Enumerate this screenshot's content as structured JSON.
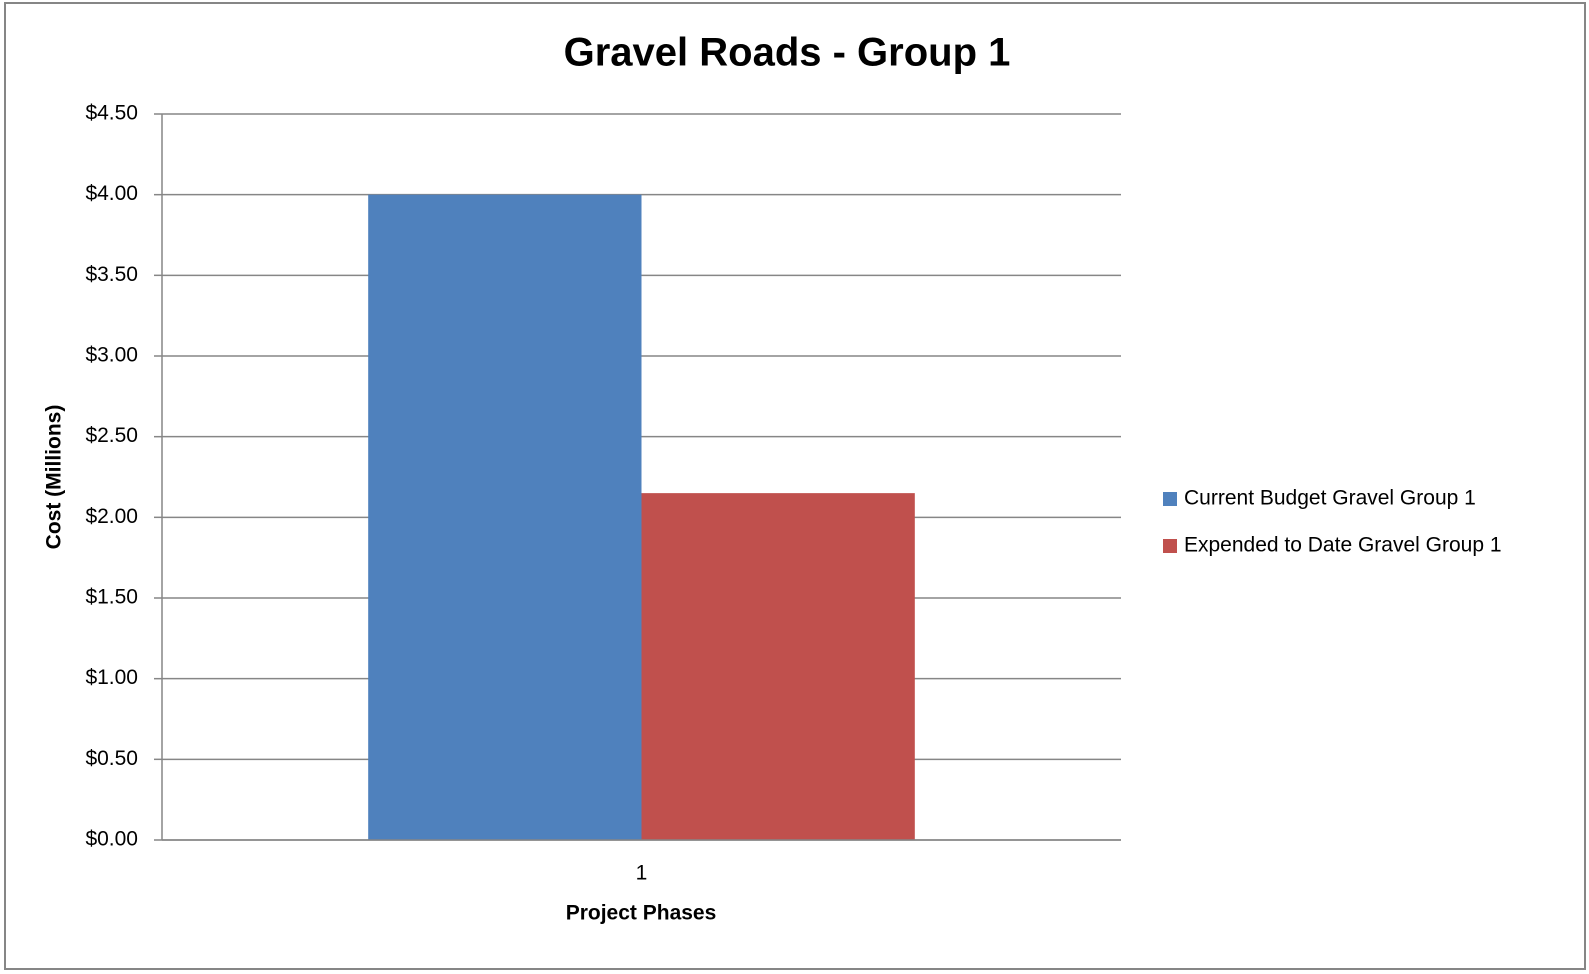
{
  "chart_data": {
    "type": "bar",
    "title": "Gravel Roads - Group 1",
    "x_label": "Project Phases",
    "y_label": "Cost (Millions)",
    "categories": [
      "1"
    ],
    "series": [
      {
        "name": "Current Budget Gravel Group 1",
        "color": "#4f81bd",
        "values": [
          4.0
        ]
      },
      {
        "name": "Expended to Date Gravel Group 1",
        "color": "#c0504d",
        "values": [
          2.15
        ]
      }
    ],
    "ylim": [
      0,
      4.5
    ],
    "yticks": [
      {
        "value": 0,
        "label": "$0.00"
      },
      {
        "value": 0.5,
        "label": "$0.50"
      },
      {
        "value": 1,
        "label": "$1.00"
      },
      {
        "value": 1.5,
        "label": "$1.50"
      },
      {
        "value": 2,
        "label": "$2.00"
      },
      {
        "value": 2.5,
        "label": "$2.50"
      },
      {
        "value": 3,
        "label": "$3.00"
      },
      {
        "value": 3.5,
        "label": "$3.50"
      },
      {
        "value": 4,
        "label": "$4.00"
      },
      {
        "value": 4.5,
        "label": "$4.50"
      }
    ],
    "grid": true,
    "legend": "right"
  }
}
